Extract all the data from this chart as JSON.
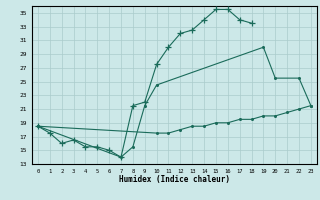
{
  "xlabel": "Humidex (Indice chaleur)",
  "bg_color": "#cce8e8",
  "grid_color": "#aacccc",
  "line_color": "#1a6b5a",
  "xlim": [
    -0.5,
    23.5
  ],
  "ylim": [
    13,
    36
  ],
  "yticks": [
    13,
    15,
    17,
    19,
    21,
    23,
    25,
    27,
    29,
    31,
    33,
    35
  ],
  "xticks": [
    0,
    1,
    2,
    3,
    4,
    5,
    6,
    7,
    8,
    9,
    10,
    11,
    12,
    13,
    14,
    15,
    16,
    17,
    18,
    19,
    20,
    21,
    22,
    23
  ],
  "line1_x": [
    0,
    1,
    2,
    3,
    4,
    5,
    6,
    7,
    8,
    9,
    10,
    11,
    12,
    13,
    14,
    15,
    16,
    17,
    18
  ],
  "line1_y": [
    18.5,
    17.5,
    16.0,
    16.5,
    15.5,
    15.5,
    15.0,
    14.0,
    21.5,
    22.0,
    27.5,
    30.0,
    32.0,
    32.5,
    34.0,
    35.5,
    35.5,
    34.0,
    33.5
  ],
  "line2_x": [
    0,
    7,
    8,
    9,
    10,
    19,
    20,
    22,
    23
  ],
  "line2_y": [
    18.5,
    14.0,
    15.5,
    21.5,
    24.5,
    30.0,
    25.5,
    25.5,
    21.5
  ],
  "line3_x": [
    0,
    10,
    11,
    12,
    13,
    14,
    15,
    16,
    17,
    18,
    19,
    20,
    21,
    22,
    23
  ],
  "line3_y": [
    18.5,
    17.5,
    17.5,
    18.0,
    18.5,
    18.5,
    19.0,
    19.0,
    19.5,
    19.5,
    20.0,
    20.0,
    20.5,
    21.0,
    21.5
  ]
}
